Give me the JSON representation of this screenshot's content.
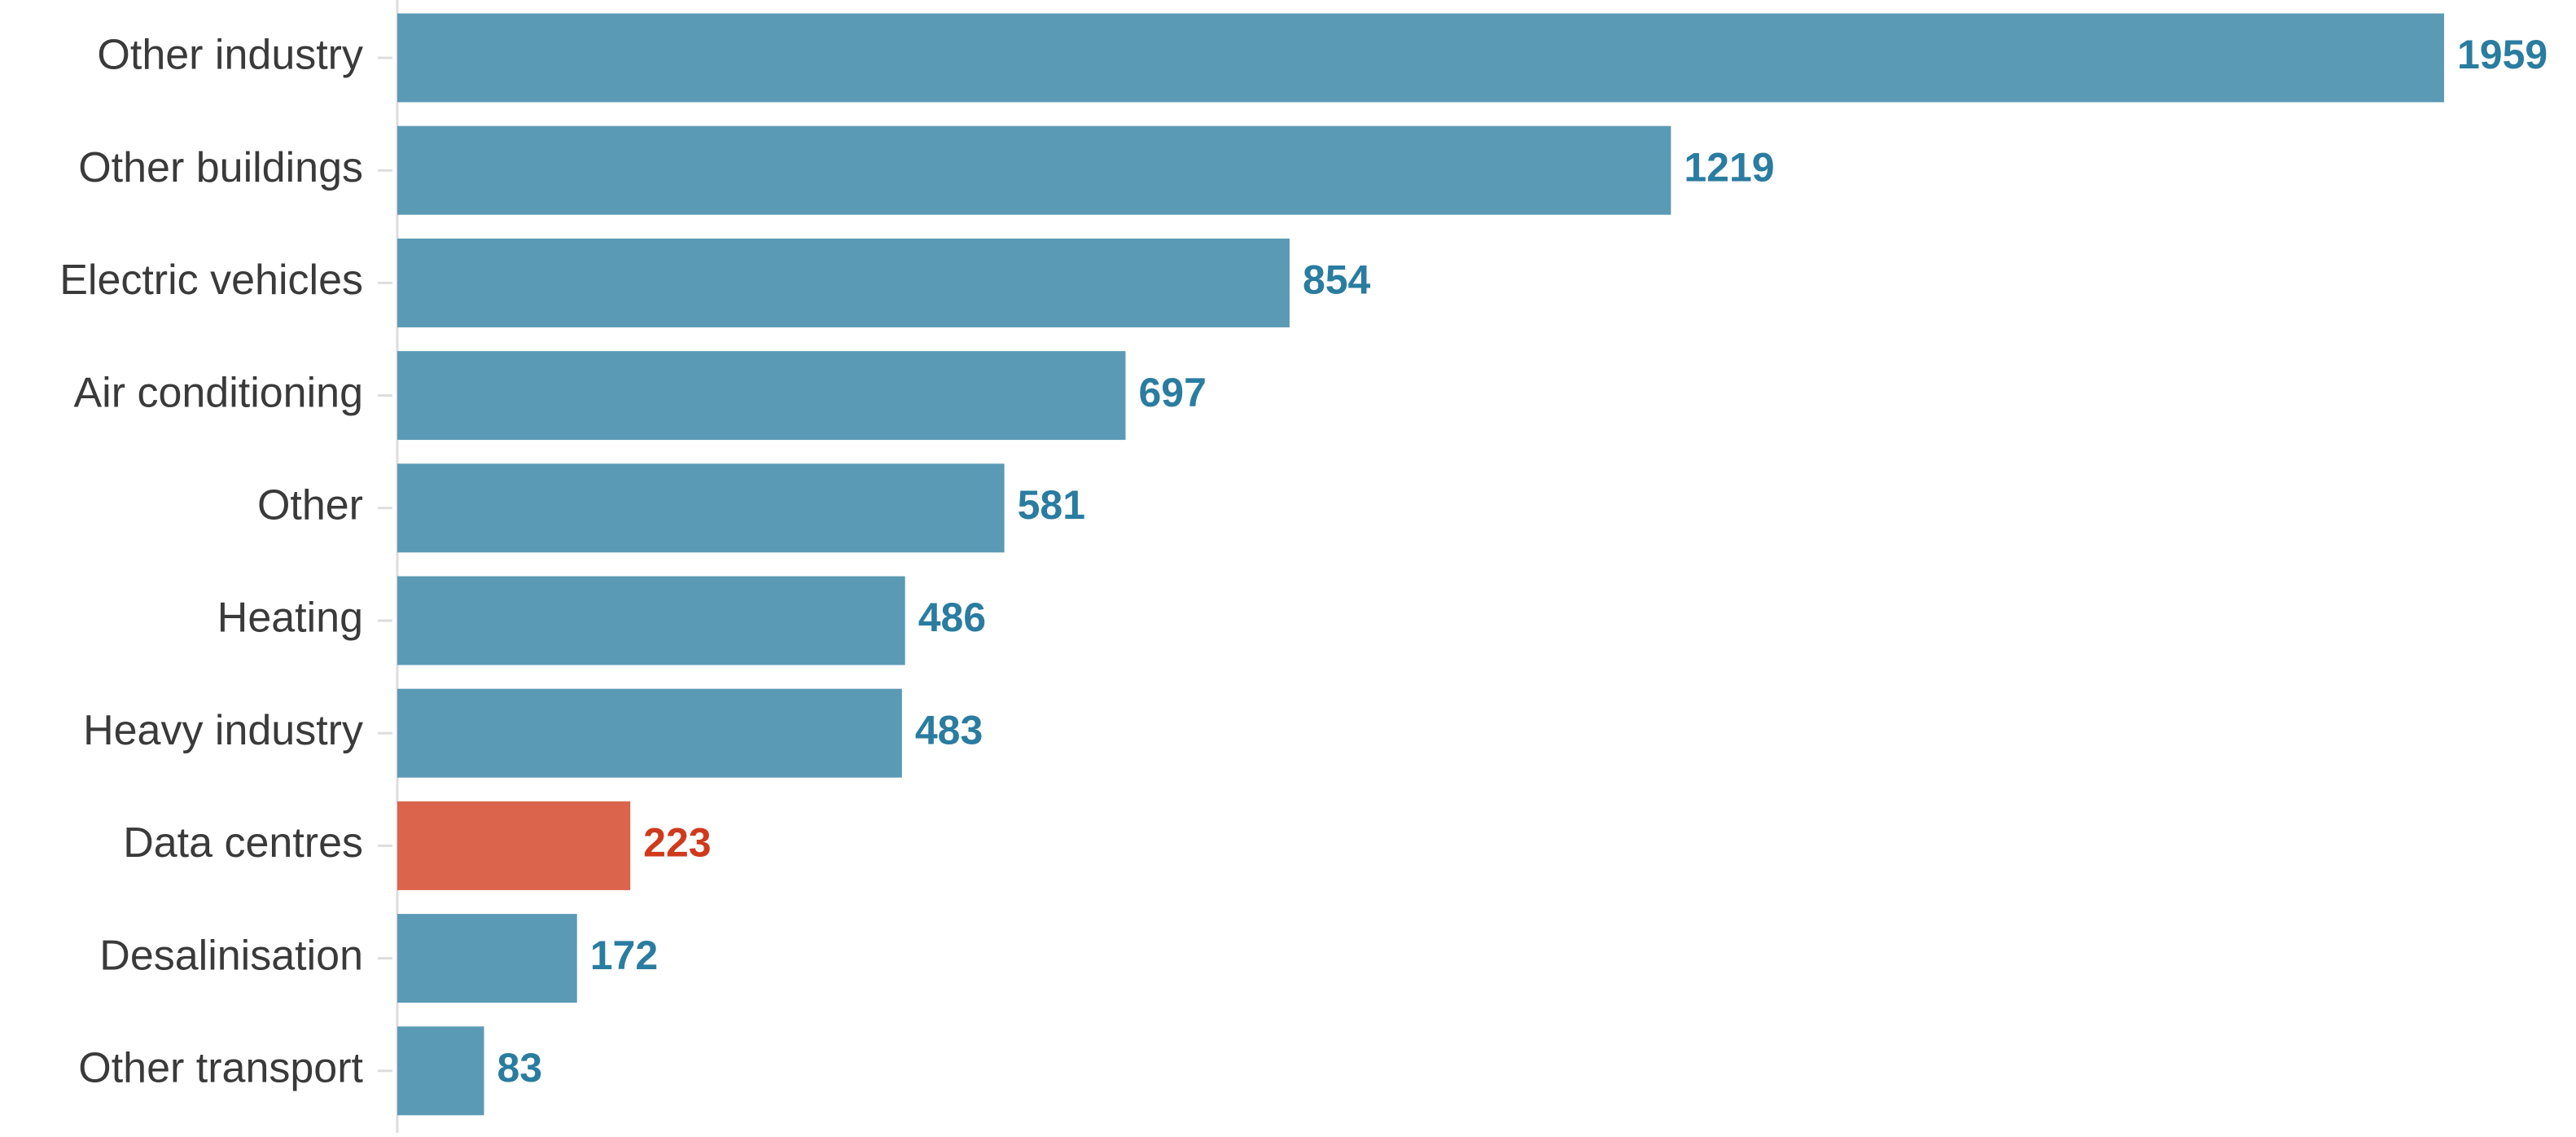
{
  "chart_data": {
    "type": "bar",
    "orientation": "horizontal",
    "categories": [
      "Other industry",
      "Other buildings",
      "Electric vehicles",
      "Air conditioning",
      "Other",
      "Heating",
      "Heavy industry",
      "Data centres",
      "Desalinisation",
      "Other transport"
    ],
    "values": [
      1959,
      1219,
      854,
      697,
      581,
      486,
      483,
      223,
      172,
      83
    ],
    "colors": [
      "#5b9ab5",
      "#5b9ab5",
      "#5b9ab5",
      "#5b9ab5",
      "#5b9ab5",
      "#5b9ab5",
      "#5b9ab5",
      "#db644c",
      "#5b9ab5",
      "#5b9ab5"
    ],
    "label_colors": [
      "#2a7ca0",
      "#2a7ca0",
      "#2a7ca0",
      "#2a7ca0",
      "#2a7ca0",
      "#2a7ca0",
      "#2a7ca0",
      "#cf3a1c",
      "#2a7ca0",
      "#2a7ca0"
    ]
  }
}
